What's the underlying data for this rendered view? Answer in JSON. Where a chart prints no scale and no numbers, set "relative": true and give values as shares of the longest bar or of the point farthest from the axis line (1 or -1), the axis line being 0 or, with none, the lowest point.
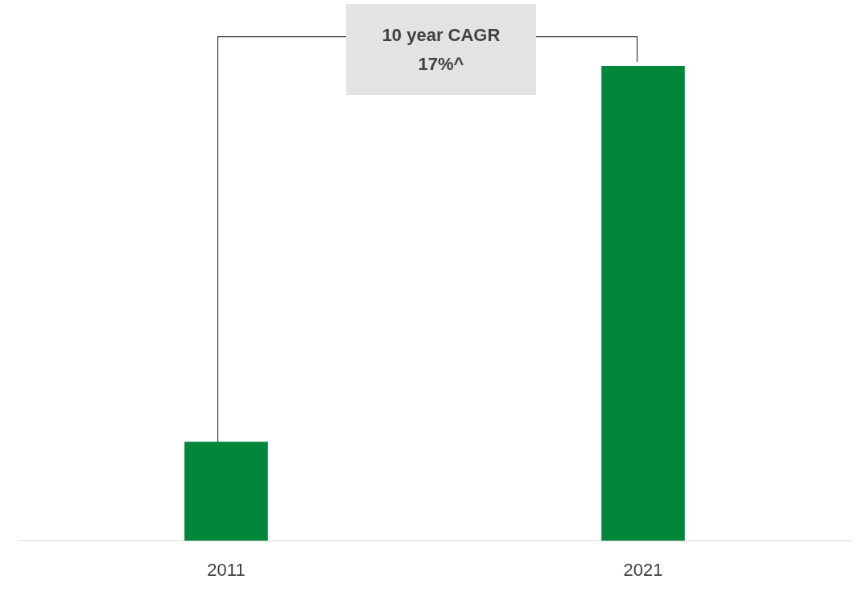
{
  "chart_data": {
    "type": "bar",
    "categories": [
      "2011",
      "2021"
    ],
    "values": [
      0.209,
      1
    ],
    "color": "#00873c",
    "relative": true,
    "grid": false,
    "legend": false,
    "annotations": [
      "10 year CAGR\n17%^"
    ]
  }
}
